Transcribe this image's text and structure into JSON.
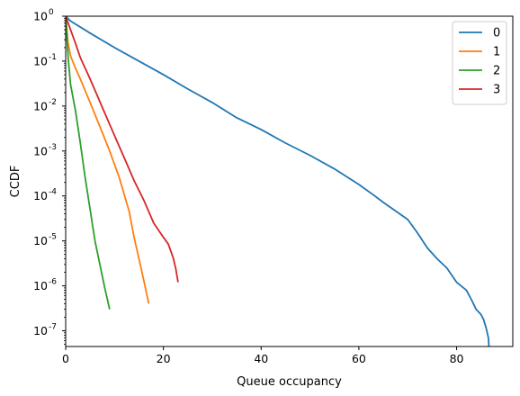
{
  "chart_data": {
    "type": "line",
    "title": "",
    "xlabel": "Queue occupancy",
    "ylabel": "CCDF",
    "xlim": [
      0,
      91.5
    ],
    "ylim_log10": [
      -7.35,
      0
    ],
    "yscale": "log",
    "x_ticks": [
      0,
      20,
      40,
      60,
      80
    ],
    "y_ticks": [
      {
        "exp": 0,
        "label": "10^0"
      },
      {
        "exp": -1,
        "label": "10^-1"
      },
      {
        "exp": -2,
        "label": "10^-2"
      },
      {
        "exp": -3,
        "label": "10^-3"
      },
      {
        "exp": -4,
        "label": "10^-4"
      },
      {
        "exp": -5,
        "label": "10^-5"
      },
      {
        "exp": -6,
        "label": "10^-6"
      },
      {
        "exp": -7,
        "label": "10^-7"
      }
    ],
    "legend_position": "top-right",
    "series": [
      {
        "name": "0",
        "color": "#1f77b4",
        "points": [
          [
            0,
            1.0
          ],
          [
            1,
            0.78
          ],
          [
            5,
            0.42
          ],
          [
            10,
            0.2
          ],
          [
            15,
            0.1
          ],
          [
            20,
            0.05
          ],
          [
            25,
            0.024
          ],
          [
            30,
            0.012
          ],
          [
            35,
            0.0055
          ],
          [
            40,
            0.003
          ],
          [
            45,
            0.0015
          ],
          [
            50,
            0.0008
          ],
          [
            55,
            0.0004
          ],
          [
            60,
            0.00018
          ],
          [
            63,
            0.000105
          ],
          [
            65,
            7.2e-05
          ],
          [
            70,
            3e-05
          ],
          [
            72,
            1.5e-05
          ],
          [
            74,
            7e-06
          ],
          [
            76,
            4e-06
          ],
          [
            78,
            2.5e-06
          ],
          [
            80,
            1.2e-06
          ],
          [
            82,
            8e-07
          ],
          [
            83,
            5e-07
          ],
          [
            84,
            3e-07
          ],
          [
            85,
            2.3e-07
          ],
          [
            85.5,
            1.8e-07
          ],
          [
            86,
            1.2e-07
          ],
          [
            86.5,
            7e-08
          ],
          [
            87,
            1e-08
          ]
        ]
      },
      {
        "name": "1",
        "color": "#ff7f0e",
        "points": [
          [
            0,
            1.0
          ],
          [
            0.5,
            0.25
          ],
          [
            1,
            0.13
          ],
          [
            2,
            0.07
          ],
          [
            3,
            0.04
          ],
          [
            5,
            0.012
          ],
          [
            7,
            0.0035
          ],
          [
            9,
            0.001
          ],
          [
            11,
            0.00025
          ],
          [
            13,
            4.5e-05
          ],
          [
            14,
            1.2e-05
          ],
          [
            15,
            4e-06
          ],
          [
            16,
            1.3e-06
          ],
          [
            17,
            4e-07
          ]
        ]
      },
      {
        "name": "2",
        "color": "#2ca02c",
        "points": [
          [
            0,
            1.0
          ],
          [
            0.5,
            0.12
          ],
          [
            1,
            0.03
          ],
          [
            2,
            0.008
          ],
          [
            3,
            0.0015
          ],
          [
            4,
            0.00025
          ],
          [
            5,
            5e-05
          ],
          [
            6,
            1e-05
          ],
          [
            7,
            3e-06
          ],
          [
            8,
            9e-07
          ],
          [
            9,
            3e-07
          ]
        ]
      },
      {
        "name": "3",
        "color": "#d62728",
        "points": [
          [
            0,
            1.0
          ],
          [
            1,
            0.5
          ],
          [
            2,
            0.25
          ],
          [
            3,
            0.12
          ],
          [
            5,
            0.04
          ],
          [
            8,
            0.007
          ],
          [
            10,
            0.0022
          ],
          [
            12,
            0.0007
          ],
          [
            14,
            0.00022
          ],
          [
            16,
            8e-05
          ],
          [
            18,
            2.5e-05
          ],
          [
            20,
            1.2e-05
          ],
          [
            21,
            8.5e-06
          ],
          [
            22,
            4.2e-06
          ],
          [
            22.5,
            2.5e-06
          ],
          [
            23,
            1.2e-06
          ]
        ]
      }
    ]
  }
}
